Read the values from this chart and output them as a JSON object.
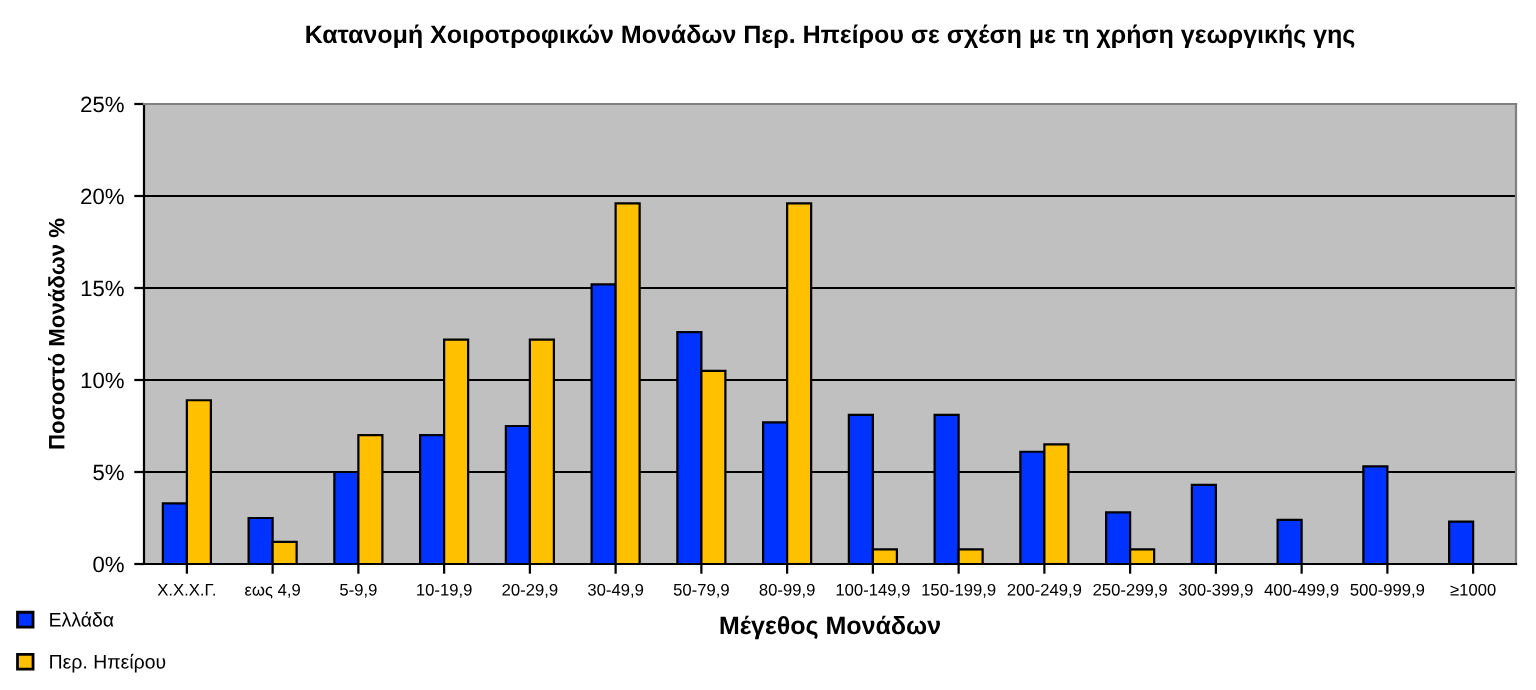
{
  "chart_data": {
    "type": "bar",
    "title": "Κατανομή Χοιροτροφικών Μονάδων Περ. Ηπείρου σε σχέση με τη χρήση γεωργικής γης",
    "xlabel": "Μέγεθος Μονάδων",
    "ylabel": "Ποσοστό Μονάδων %",
    "categories": [
      "Χ.Χ.Χ.Γ.",
      "εως 4,9",
      "5-9,9",
      "10-19,9",
      "20-29,9",
      "30-49,9",
      "50-79,9",
      "80-99,9",
      "100-149,9",
      "150-199,9",
      "200-249,9",
      "250-299,9",
      "300-399,9",
      "400-499,9",
      "500-999,9",
      "≥1000"
    ],
    "series": [
      {
        "name": "Ελλάδα",
        "color": "#0033ff",
        "values": [
          3.3,
          2.5,
          5.0,
          7.0,
          7.5,
          15.2,
          12.6,
          7.7,
          8.1,
          8.1,
          6.1,
          2.8,
          4.3,
          2.4,
          5.3,
          2.3
        ]
      },
      {
        "name": "Περ. Ηπείρου",
        "color": "#ffc000",
        "values": [
          8.9,
          1.2,
          7.0,
          12.2,
          12.2,
          19.6,
          10.5,
          19.6,
          0.8,
          0.8,
          6.5,
          0.8,
          null,
          null,
          null,
          null
        ]
      }
    ],
    "ylim": [
      0,
      25
    ],
    "yticks": [
      {
        "value": 0,
        "label": "0%"
      },
      {
        "value": 5,
        "label": "5%"
      },
      {
        "value": 10,
        "label": "10%"
      },
      {
        "value": 15,
        "label": "15%"
      },
      {
        "value": 20,
        "label": "20%"
      },
      {
        "value": 25,
        "label": "25%"
      }
    ],
    "grid": "y",
    "legend": "bottom left"
  }
}
